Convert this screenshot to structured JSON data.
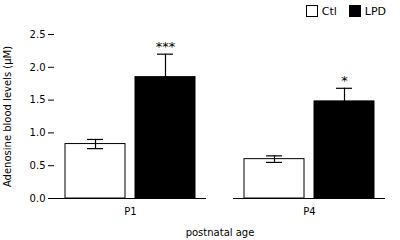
{
  "chart_data": {
    "type": "bar",
    "categories": [
      "P1",
      "P4"
    ],
    "series": [
      {
        "name": "Ctl",
        "color": "#ffffff",
        "values": [
          0.83,
          0.6
        ],
        "errors": [
          0.07,
          0.05
        ]
      },
      {
        "name": "LPD",
        "color": "#000000",
        "values": [
          1.85,
          1.48
        ],
        "errors": [
          0.35,
          0.2
        ],
        "annotations": [
          "***",
          "*"
        ]
      }
    ],
    "xlabel": "postnatal age",
    "ylabel": "Adenosine blood levels (μM)",
    "ylim": [
      0,
      2.5
    ],
    "yticks": [
      {
        "value": 0,
        "label": "0.0"
      },
      0.5,
      {
        "value": 1,
        "label": "1.0"
      },
      1.5,
      {
        "value": 2,
        "label": "2.0"
      },
      2.5
    ],
    "legend": "upper right"
  }
}
